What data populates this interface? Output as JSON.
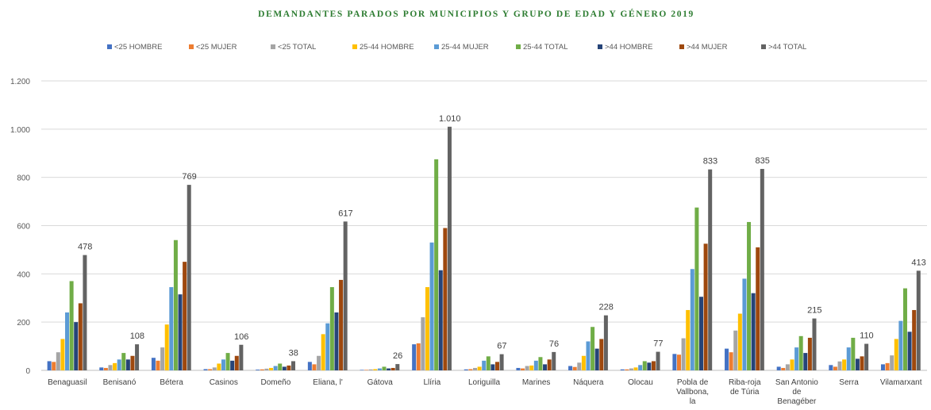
{
  "chart_data": {
    "type": "bar",
    "title": "DEMANDANTES PARADOS POR MUNICIPIOS  Y GRUPO DE EDAD Y GÉNERO 2019",
    "title_color": "#2e7d32",
    "xlabel": "",
    "ylabel": "",
    "ylim": [
      0,
      1200
    ],
    "yticks": [
      0,
      200,
      400,
      600,
      800,
      1000,
      1200
    ],
    "ytick_labels": [
      "0",
      "200",
      "400",
      "600",
      "800",
      "1.000",
      "1.200"
    ],
    "grid": true,
    "legend_position": "top",
    "categories": [
      "Benaguasil",
      "Benisanó",
      "Bétera",
      "Casinos",
      "Domeño",
      "Eliana, l'",
      "Gátova",
      "Llíria",
      "Loriguilla",
      "Marines",
      "Náquera",
      "Olocau",
      "Pobla de Vallbona, la",
      "Riba-roja de Túria",
      "San Antonio de Benagéber",
      "Serra",
      "Vilamarxant"
    ],
    "series": [
      {
        "name": "<25 HOMBRE",
        "color": "#4472c4",
        "values": [
          38,
          12,
          52,
          5,
          3,
          35,
          2,
          108,
          4,
          10,
          18,
          4,
          68,
          90,
          15,
          22,
          25
        ]
      },
      {
        "name": "<25 MUJER",
        "color": "#ed7d31",
        "values": [
          35,
          10,
          40,
          5,
          4,
          25,
          2,
          112,
          5,
          8,
          14,
          4,
          65,
          75,
          10,
          15,
          30
        ]
      },
      {
        "name": "<25 TOTAL",
        "color": "#a5a5a5",
        "values": [
          75,
          22,
          95,
          12,
          7,
          60,
          4,
          220,
          10,
          18,
          32,
          8,
          133,
          165,
          25,
          37,
          62
        ]
      },
      {
        "name": "25-44 HOMBRE",
        "color": "#ffc000",
        "values": [
          130,
          30,
          190,
          28,
          10,
          150,
          5,
          345,
          15,
          20,
          60,
          12,
          250,
          235,
          45,
          45,
          130
        ]
      },
      {
        "name": "25-44 MUJER",
        "color": "#5b9bd5",
        "values": [
          240,
          45,
          345,
          45,
          18,
          195,
          8,
          530,
          40,
          40,
          120,
          22,
          420,
          380,
          95,
          95,
          205
        ]
      },
      {
        "name": "25-44 TOTAL",
        "color": "#70ad47",
        "values": [
          370,
          72,
          540,
          72,
          28,
          345,
          15,
          875,
          58,
          55,
          180,
          38,
          675,
          615,
          142,
          135,
          340
        ]
      },
      {
        "name": ">44 HOMBRE",
        "color": "#264478",
        "values": [
          200,
          45,
          315,
          40,
          15,
          240,
          8,
          415,
          25,
          25,
          90,
          32,
          305,
          320,
          72,
          48,
          160
        ]
      },
      {
        "name": ">44 MUJER",
        "color": "#9e480e",
        "values": [
          278,
          60,
          450,
          60,
          20,
          375,
          10,
          590,
          35,
          45,
          130,
          38,
          525,
          510,
          135,
          58,
          250
        ]
      },
      {
        "name": ">44 TOTAL",
        "color": "#636363",
        "values": [
          478,
          108,
          769,
          106,
          38,
          617,
          26,
          1010,
          67,
          76,
          228,
          77,
          833,
          835,
          215,
          110,
          413
        ]
      }
    ],
    "data_label_series": ">44 TOTAL",
    "data_labels": [
      "478",
      "108",
      "769",
      "106",
      "38",
      "617",
      "26",
      "1.010",
      "67",
      "76",
      "228",
      "77",
      "833",
      "835",
      "215",
      "110",
      "413"
    ]
  }
}
